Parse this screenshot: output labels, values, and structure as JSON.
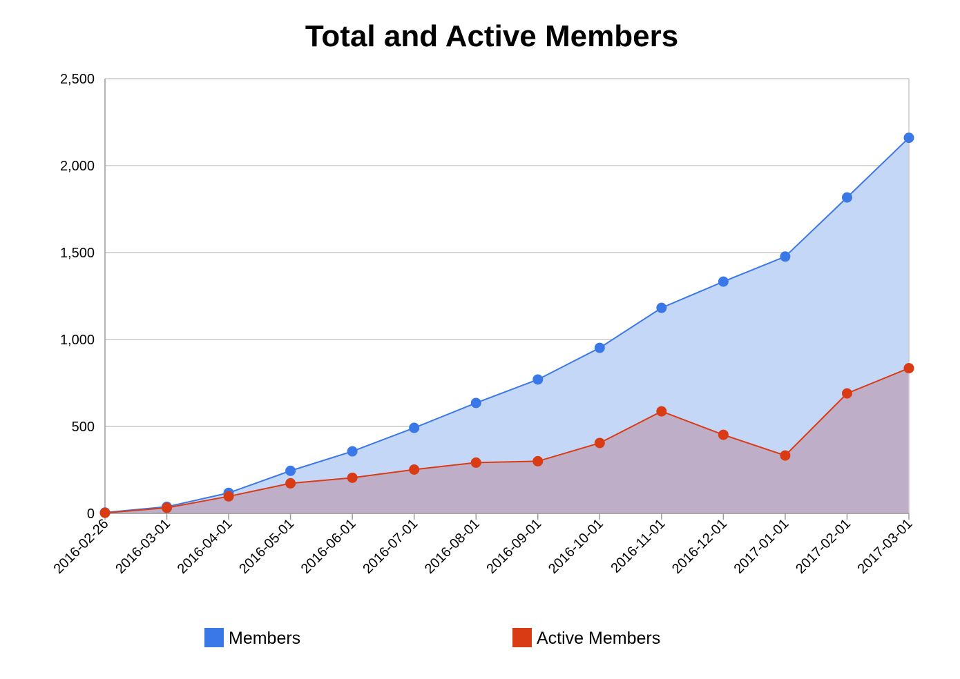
{
  "chart_data": {
    "type": "area",
    "title": "Total and Active Members",
    "xlabel": "",
    "ylabel": "",
    "categories": [
      "2016-02-26",
      "2016-03-01",
      "2016-04-01",
      "2016-05-01",
      "2016-06-01",
      "2016-07-01",
      "2016-08-01",
      "2016-09-01",
      "2016-10-01",
      "2016-11-01",
      "2016-12-01",
      "2017-01-01",
      "2017-02-01",
      "2017-03-01"
    ],
    "ylim": [
      0,
      2500
    ],
    "yticks": [
      0,
      500,
      1000,
      1500,
      2000,
      2500
    ],
    "ytick_labels": [
      "0",
      "500",
      "1,000",
      "1,500",
      "2,000",
      "2,500"
    ],
    "grid": true,
    "legend_position": "bottom",
    "series": [
      {
        "name": "Members",
        "color": "#3b78e7",
        "fill": "#c5d7f7",
        "values": [
          5,
          38,
          118,
          245,
          357,
          492,
          635,
          770,
          952,
          1182,
          1333,
          1477,
          1817,
          2160
        ]
      },
      {
        "name": "Active Members",
        "color": "#d93b14",
        "fill": "#bfaec8",
        "values": [
          3,
          32,
          98,
          173,
          205,
          252,
          292,
          300,
          405,
          587,
          452,
          333,
          690,
          835
        ]
      }
    ]
  }
}
